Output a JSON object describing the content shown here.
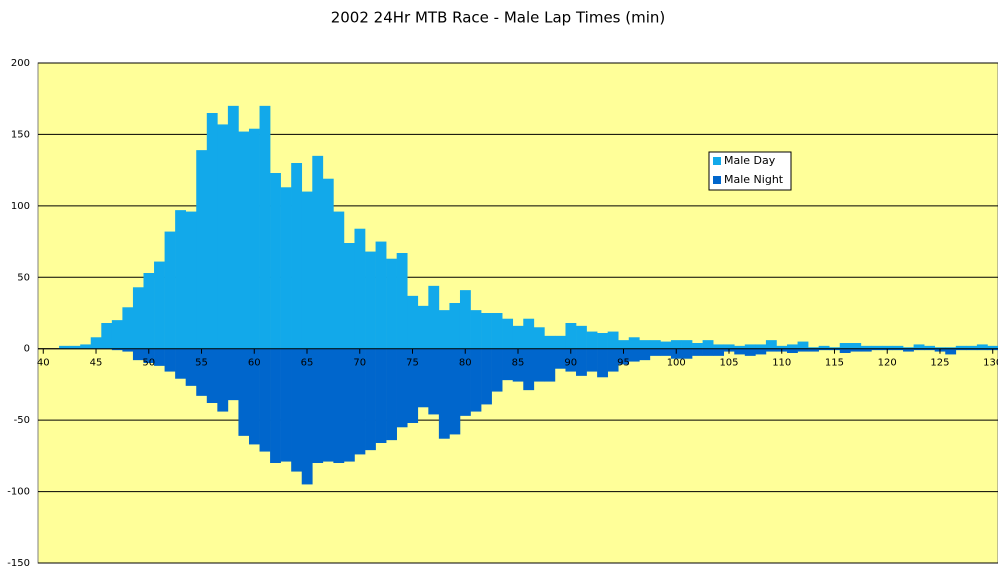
{
  "chart_data": {
    "type": "bar",
    "title": "2002 24Hr MTB Race - Male Lap Times (min)",
    "x": [
      41,
      42,
      43,
      44,
      45,
      46,
      47,
      48,
      49,
      50,
      51,
      52,
      53,
      54,
      55,
      56,
      57,
      58,
      59,
      60,
      61,
      62,
      63,
      64,
      65,
      66,
      67,
      68,
      69,
      70,
      71,
      72,
      73,
      74,
      75,
      76,
      77,
      78,
      79,
      80,
      81,
      82,
      83,
      84,
      85,
      86,
      87,
      88,
      89,
      90,
      91,
      92,
      93,
      94,
      95,
      96,
      97,
      98,
      99,
      100,
      101,
      102,
      103,
      104,
      105,
      106,
      107,
      108,
      109,
      110,
      111,
      112,
      113,
      114,
      115,
      116,
      117,
      118,
      119,
      120,
      121,
      122,
      123,
      124,
      125,
      126,
      127,
      128,
      129,
      130
    ],
    "series": [
      {
        "name": "Male Day",
        "color": "#12a9ea",
        "values": [
          0,
          2,
          2,
          3,
          8,
          18,
          20,
          29,
          43,
          53,
          61,
          82,
          97,
          96,
          139,
          165,
          157,
          170,
          152,
          154,
          170,
          123,
          113,
          130,
          110,
          135,
          119,
          96,
          74,
          84,
          68,
          75,
          63,
          67,
          37,
          30,
          44,
          27,
          32,
          41,
          27,
          25,
          25,
          21,
          16,
          21,
          15,
          9,
          9,
          18,
          16,
          12,
          11,
          12,
          6,
          8,
          6,
          6,
          5,
          6,
          6,
          4,
          6,
          3,
          3,
          2,
          3,
          3,
          6,
          2,
          3,
          5,
          1,
          2,
          1,
          4,
          4,
          2,
          2,
          2,
          2,
          1,
          3,
          2,
          1,
          1,
          2,
          2,
          3,
          2
        ]
      },
      {
        "name": "Male Night",
        "color": "#0066cc",
        "values": [
          0,
          0,
          0,
          0,
          0,
          0,
          -1,
          -2,
          -8,
          -10,
          -12,
          -16,
          -21,
          -26,
          -33,
          -38,
          -44,
          -36,
          -61,
          -67,
          -72,
          -80,
          -79,
          -86,
          -95,
          -80,
          -79,
          -80,
          -79,
          -74,
          -71,
          -66,
          -64,
          -55,
          -52,
          -41,
          -46,
          -63,
          -60,
          -47,
          -44,
          -39,
          -30,
          -22,
          -23,
          -29,
          -23,
          -23,
          -14,
          -16,
          -19,
          -16,
          -20,
          -16,
          -11,
          -9,
          -8,
          -5,
          -5,
          -7,
          -7,
          -5,
          -5,
          -5,
          -2,
          -4,
          -5,
          -4,
          -2,
          -2,
          -3,
          -2,
          -2,
          -1,
          -1,
          -3,
          -2,
          -2,
          -1,
          -1,
          -1,
          -2,
          -1,
          -1,
          -2,
          -4,
          -1,
          -1,
          -1,
          -1
        ]
      }
    ],
    "xlim": [
      39.5,
      130.5
    ],
    "xticks": [
      40,
      45,
      50,
      55,
      60,
      65,
      70,
      75,
      80,
      85,
      90,
      95,
      100,
      105,
      110,
      115,
      120,
      125,
      130
    ],
    "ylim": [
      -150,
      200
    ],
    "yticks": [
      -150,
      -100,
      -50,
      0,
      50,
      100,
      150,
      200
    ],
    "grid": true,
    "plot_background": "#ffff99"
  }
}
